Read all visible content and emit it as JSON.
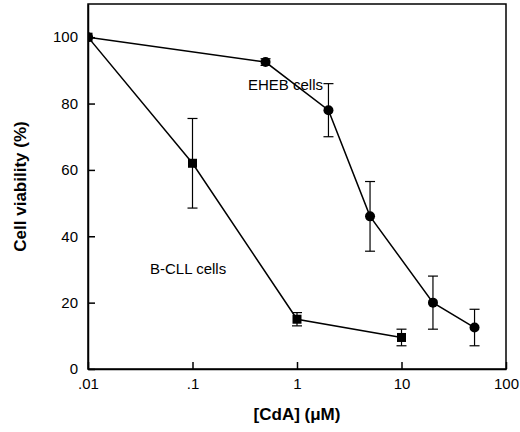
{
  "chart_data": {
    "type": "line",
    "x_label": "[CdA] (μM)",
    "y_label": "Cell viability (%)",
    "annotations": [
      "EHEB cells",
      "B-CLL cells"
    ],
    "log": "x",
    "xlim": [
      0.01,
      100
    ],
    "xticks": [
      {
        "value": 0.01,
        "label": ".01"
      },
      {
        "value": 0.1,
        "label": ".1"
      },
      1,
      10,
      100
    ],
    "ylim": [
      0,
      110
    ],
    "yticks": [
      0,
      20,
      40,
      60,
      80,
      100
    ],
    "grid": false,
    "series": [
      {
        "name": "B-CLL cells",
        "color": "#000000",
        "marker": "square",
        "line_style": "solid",
        "x": [
          0.01,
          0.1,
          1,
          10
        ],
        "values": [
          100,
          62,
          15,
          9.5
        ],
        "errors": [
          0,
          13.5,
          2,
          2.5
        ]
      },
      {
        "name": "EHEB cells",
        "color": "#000000",
        "marker": "circle",
        "line_style": "solid",
        "x": [
          0.01,
          0.5,
          2,
          5,
          20,
          50
        ],
        "values": [
          100,
          92.5,
          78,
          46,
          20,
          12.5
        ],
        "errors": [
          0,
          1,
          8,
          10.5,
          8,
          5.5
        ]
      }
    ]
  }
}
